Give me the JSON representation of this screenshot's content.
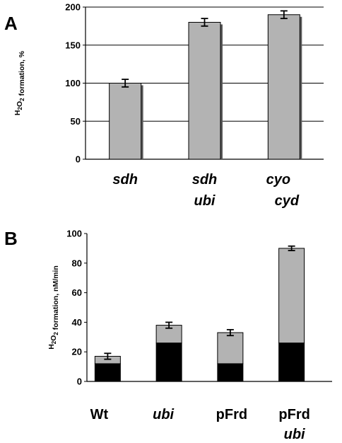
{
  "chart_data": [
    {
      "panel": "A",
      "type": "bar",
      "ylabel": "H2O2 formation, %",
      "ylim": [
        0,
        200
      ],
      "yticks": [
        0,
        50,
        100,
        150,
        200
      ],
      "grid": true,
      "categories": [
        {
          "lines": [
            "sdh"
          ],
          "italic": [
            true
          ]
        },
        {
          "lines": [
            "sdh",
            "ubi"
          ],
          "italic": [
            true,
            true
          ]
        },
        {
          "lines": [
            "cyo",
            "cyd"
          ],
          "italic": [
            true,
            true
          ]
        }
      ],
      "values": [
        100,
        180,
        190
      ],
      "errors": [
        5,
        5,
        5
      ],
      "bar_color": "#b3b3b3"
    },
    {
      "panel": "B",
      "type": "bar",
      "stacked": true,
      "ylabel": "H2O2 formation, nM/min",
      "ylim": [
        0,
        100
      ],
      "yticks": [
        0,
        20,
        40,
        60,
        80,
        100
      ],
      "grid": false,
      "categories": [
        {
          "lines": [
            "Wt"
          ],
          "italic": [
            false
          ]
        },
        {
          "lines": [
            "ubi"
          ],
          "italic": [
            true
          ]
        },
        {
          "lines": [
            "pFrd"
          ],
          "italic": [
            false
          ]
        },
        {
          "lines": [
            "pFrd",
            "ubi"
          ],
          "italic": [
            false,
            true
          ]
        }
      ],
      "series": [
        {
          "values": [
            12,
            26,
            12,
            26
          ],
          "color": "#000000"
        },
        {
          "values": [
            5,
            12,
            21,
            64
          ],
          "color": "#b3b3b3"
        }
      ],
      "totals": [
        17,
        38,
        33,
        90
      ],
      "errors": [
        2,
        2,
        2,
        1.5
      ]
    }
  ]
}
